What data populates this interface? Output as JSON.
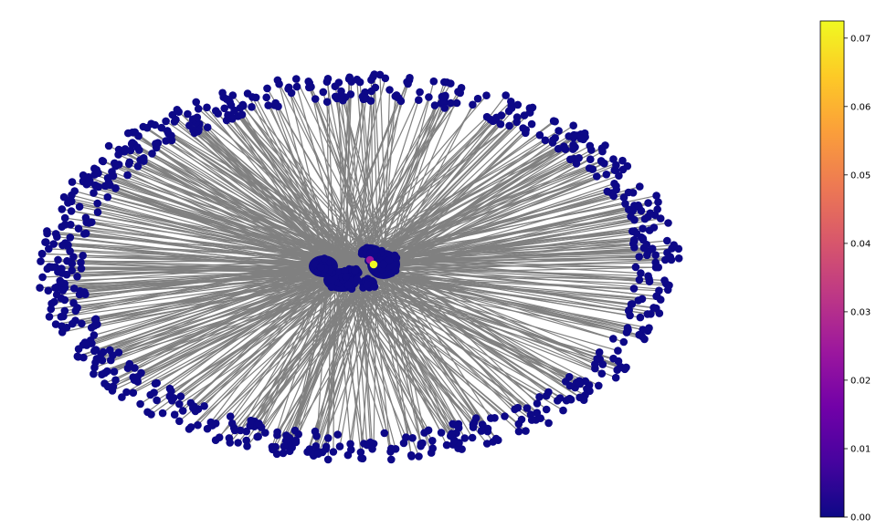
{
  "graph": {
    "type": "network",
    "layout": "ring-with-central-cluster",
    "edge_color": "#808080",
    "node_color_default": "#0d0887",
    "highlight_node_colors": [
      "#f0f921",
      "#9c179e"
    ],
    "ring_node_count": 720,
    "central_cluster_node_count": 80
  },
  "colorbar": {
    "colormap": "plasma",
    "min": 0.0,
    "max": 0.0725,
    "ticks": [
      "0.00",
      "0.01",
      "0.02",
      "0.03",
      "0.04",
      "0.05",
      "0.06",
      "0.07"
    ],
    "tick_values": [
      0.0,
      0.01,
      0.02,
      0.03,
      0.04,
      0.05,
      0.06,
      0.07
    ],
    "stops": [
      "#0d0887",
      "#46039f",
      "#7201a8",
      "#9c179e",
      "#bd3786",
      "#d8576b",
      "#ed7953",
      "#fb9f3a",
      "#fdca26",
      "#f0f921"
    ]
  }
}
